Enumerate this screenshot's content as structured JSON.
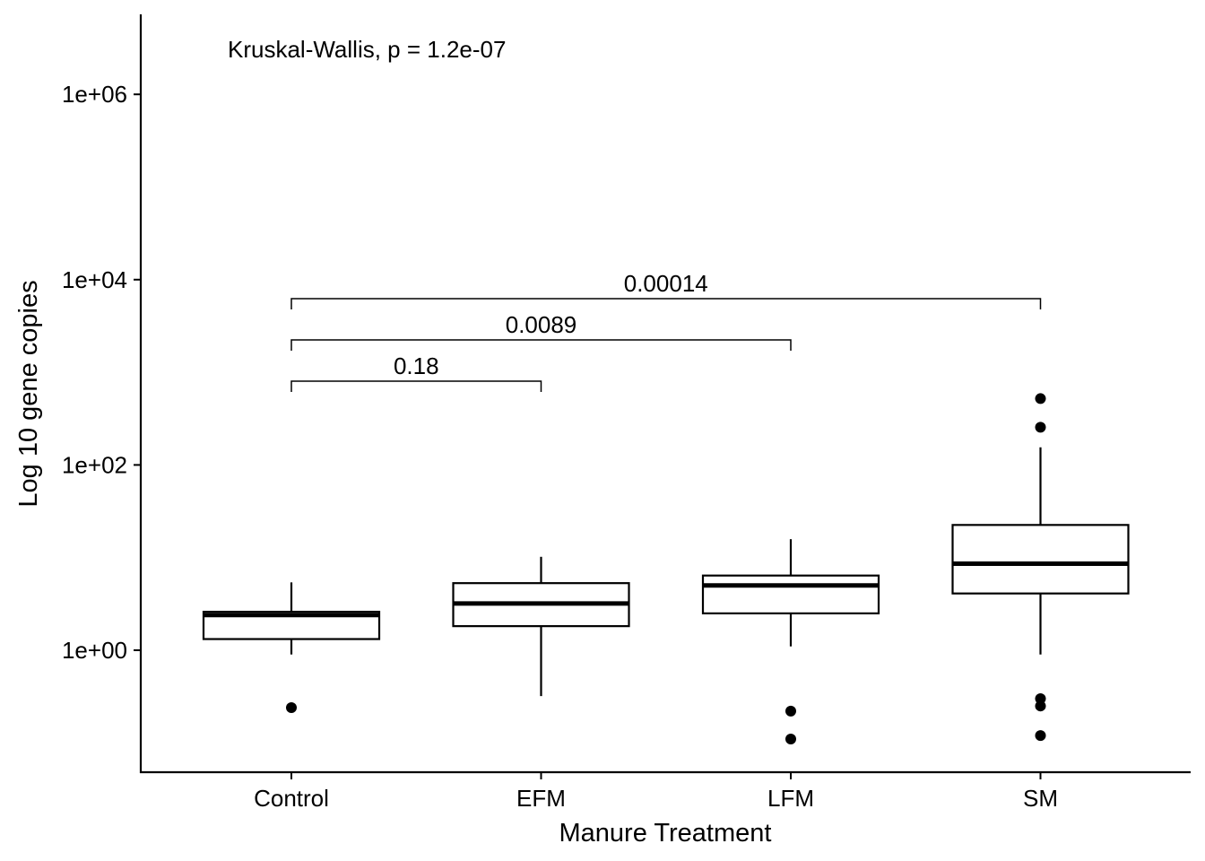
{
  "chart_data": {
    "type": "box",
    "xlabel": "Manure Treatment",
    "ylabel": "Log 10 gene copies",
    "y_scale": "log10",
    "ylim": [
      0.05,
      6000000
    ],
    "y_ticks": [
      1,
      100,
      10000,
      1000000
    ],
    "y_tick_labels": [
      "1e+00",
      "1e+02",
      "1e+04",
      "1e+06"
    ],
    "grid": false,
    "categories": [
      "Control",
      "EFM",
      "LFM",
      "SM"
    ],
    "boxes": [
      {
        "category": "Control",
        "whisker_low": 0.9,
        "q1": 1.32,
        "median": 2.4,
        "q3": 2.6,
        "whisker_high": 5.4,
        "outliers": [
          0.24
        ]
      },
      {
        "category": "EFM",
        "whisker_low": 0.32,
        "q1": 1.82,
        "median": 3.2,
        "q3": 5.3,
        "whisker_high": 10.2,
        "outliers": []
      },
      {
        "category": "LFM",
        "whisker_low": 1.1,
        "q1": 2.5,
        "median": 5.0,
        "q3": 6.4,
        "whisker_high": 15.8,
        "outliers": [
          0.22,
          0.11
        ]
      },
      {
        "category": "SM",
        "whisker_low": 0.9,
        "q1": 4.1,
        "median": 8.6,
        "q3": 22.5,
        "whisker_high": 155,
        "outliers": [
          520,
          255,
          0.3,
          0.25,
          0.12
        ]
      }
    ],
    "comparisons": [
      {
        "from": "Control",
        "to": "EFM",
        "label": "0.18"
      },
      {
        "from": "Control",
        "to": "LFM",
        "label": "0.0089"
      },
      {
        "from": "Control",
        "to": "SM",
        "label": "0.00014"
      }
    ],
    "annotation": "Kruskal-Wallis, p = 1.2e-07"
  }
}
